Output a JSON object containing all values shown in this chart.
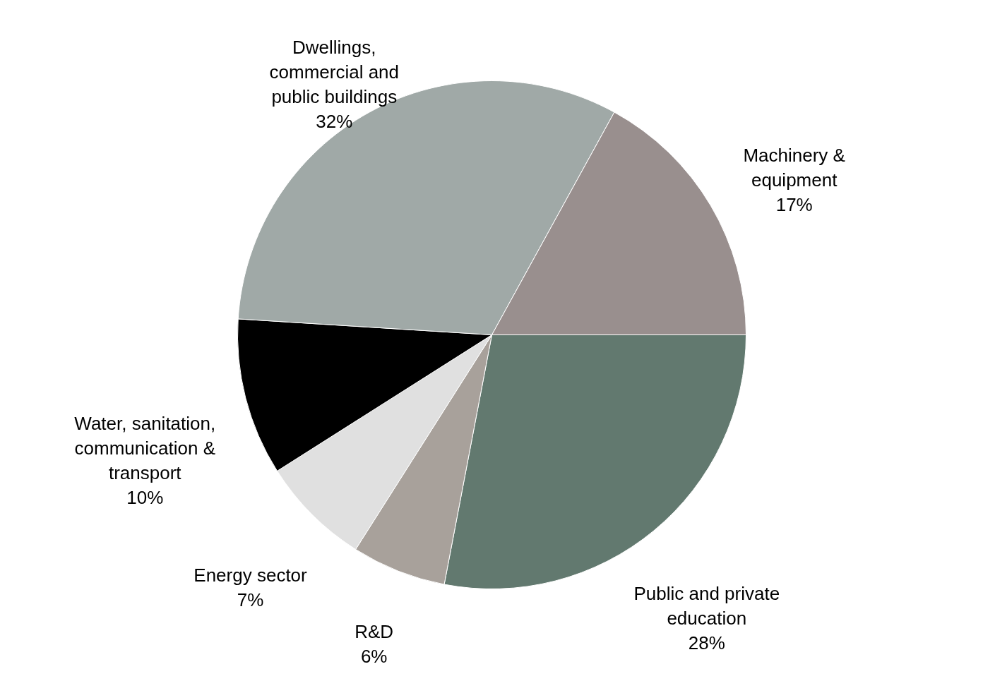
{
  "chart_data": {
    "type": "pie",
    "categories": [
      "Public and private education",
      "R&D",
      "Energy sector",
      "Water, sanitation, communication & transport",
      "Dwellings, commercial and public buildings",
      "Machinery & equipment"
    ],
    "values": [
      28,
      6,
      7,
      10,
      32,
      17
    ],
    "value_labels": [
      "28%",
      "6%",
      "7%",
      "10%",
      "32%",
      "17%"
    ],
    "colors": [
      "#62796f",
      "#a8a19b",
      "#e0e0e0",
      "#000000",
      "#a0a9a7",
      "#998f8e"
    ]
  }
}
